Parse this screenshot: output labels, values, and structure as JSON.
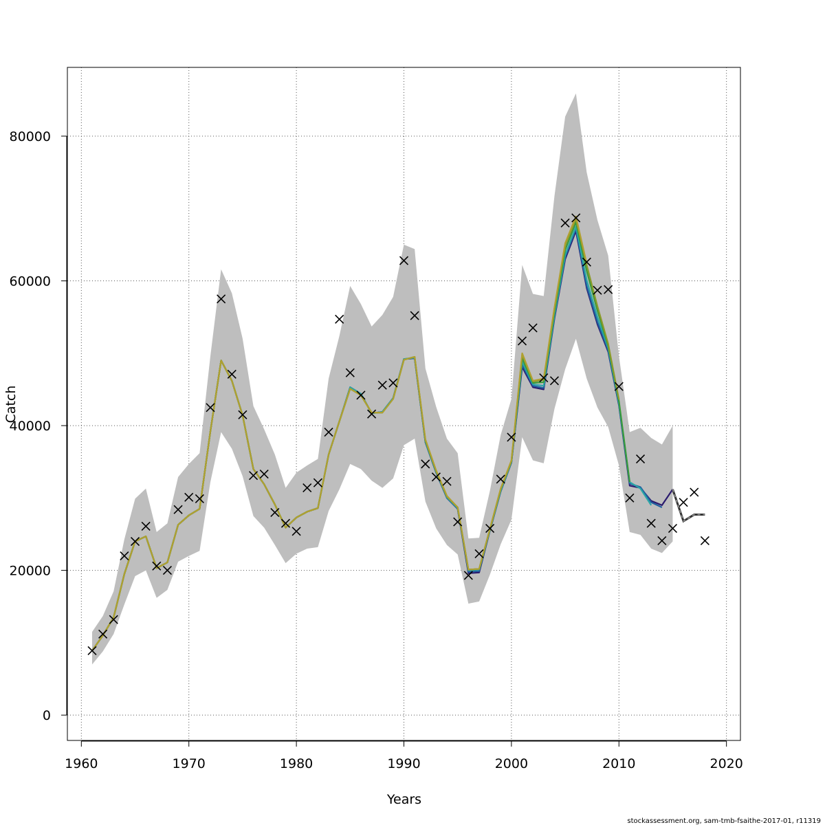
{
  "chart_data": {
    "type": "line",
    "xlabel": "Years",
    "ylabel": "Catch",
    "xlim": [
      1958.7,
      2021.3
    ],
    "ylim": [
      -3500,
      89500
    ],
    "x_ticks": [
      1960,
      1970,
      1980,
      1990,
      2000,
      2010,
      2020
    ],
    "y_ticks": [
      0,
      20000,
      40000,
      60000,
      80000
    ],
    "grid": true,
    "credit": "stockassessment.org, sam-tmb-fsaithe-2017-01, r11319",
    "colors": {
      "band": "#bebebe",
      "observed_marker": "#000000",
      "retro_lines": [
        "#2a1a6e",
        "#1f5fa0",
        "#2ba6a6",
        "#3a9a3a",
        "#8a9a2a",
        "#b0a030"
      ],
      "forecast": "#333333"
    },
    "years": [
      1961,
      1962,
      1963,
      1964,
      1965,
      1966,
      1967,
      1968,
      1969,
      1970,
      1971,
      1972,
      1973,
      1974,
      1975,
      1976,
      1977,
      1978,
      1979,
      1980,
      1981,
      1982,
      1983,
      1984,
      1985,
      1986,
      1987,
      1988,
      1989,
      1990,
      1991,
      1992,
      1993,
      1994,
      1995,
      1996,
      1997,
      1998,
      1999,
      2000,
      2001,
      2002,
      2003,
      2004,
      2005,
      2006,
      2007,
      2008,
      2009,
      2010,
      2011,
      2012,
      2013,
      2014,
      2015
    ],
    "ci_lower": [
      7000,
      8800,
      11200,
      15300,
      19200,
      20000,
      16200,
      17300,
      21200,
      22000,
      22700,
      32200,
      39100,
      36800,
      33000,
      27500,
      25900,
      23500,
      21000,
      22300,
      23000,
      23200,
      28200,
      31200,
      34700,
      34000,
      32400,
      31400,
      32700,
      37300,
      38200,
      29500,
      25800,
      23500,
      22200,
      15400,
      15700,
      19400,
      23600,
      27000,
      38400,
      35200,
      34800,
      42300,
      47800,
      52000,
      46500,
      42500,
      39800,
      34500,
      25300,
      24900,
      23000,
      22400,
      24000
    ],
    "ci_upper": [
      11500,
      13700,
      17100,
      24300,
      29900,
      31300,
      25300,
      26500,
      32900,
      34700,
      36200,
      49600,
      61600,
      58300,
      52000,
      42700,
      39500,
      36000,
      31400,
      33500,
      34500,
      35400,
      46500,
      52400,
      59300,
      56800,
      53700,
      55300,
      57800,
      65000,
      64400,
      47900,
      42600,
      38200,
      36200,
      24400,
      24500,
      31000,
      38700,
      43700,
      62200,
      58200,
      57900,
      71700,
      82700,
      85900,
      75000,
      68400,
      63500,
      49600,
      39100,
      39700,
      38300,
      37400,
      40000
    ],
    "series": [
      {
        "values": [
          8900,
          11000,
          13500,
          19500,
          24000,
          24700,
          20300,
          21100,
          26300,
          27600,
          28500,
          39200,
          49000,
          46200,
          41400,
          34000,
          31900,
          29100,
          25900,
          27300,
          28100,
          28600,
          36000,
          40600,
          45300,
          44400,
          41700,
          41900,
          43800,
          49200,
          49300,
          37700,
          33500,
          30000,
          28500,
          19600,
          19700,
          25500,
          30900,
          34900,
          48100,
          45300,
          45000,
          54800,
          63000,
          66900,
          59000,
          54000,
          50200,
          42800,
          31700,
          31400,
          29600,
          29000,
          31200
        ]
      },
      {
        "values": [
          8900,
          11000,
          13500,
          19500,
          24000,
          24700,
          20300,
          21100,
          26300,
          27600,
          28500,
          39200,
          49000,
          46200,
          41400,
          34000,
          31900,
          29100,
          25900,
          27300,
          28100,
          28600,
          36000,
          40600,
          45300,
          44400,
          41700,
          41900,
          43800,
          49200,
          49300,
          37700,
          33500,
          30000,
          28500,
          19800,
          19900,
          25500,
          30900,
          34900,
          48400,
          45500,
          45200,
          55000,
          63300,
          67200,
          59300,
          54300,
          50400,
          42900,
          32000,
          31500,
          29400,
          28700
        ]
      },
      {
        "values": [
          8900,
          11000,
          13500,
          19500,
          24000,
          24700,
          20300,
          21100,
          26300,
          27600,
          28500,
          39200,
          49000,
          46200,
          41400,
          34000,
          31900,
          29100,
          25900,
          27300,
          28100,
          28600,
          36000,
          40600,
          45300,
          44400,
          41700,
          41900,
          43800,
          49200,
          49400,
          37800,
          33600,
          30100,
          28600,
          20000,
          20100,
          25600,
          31000,
          35000,
          48800,
          45700,
          45500,
          55200,
          63600,
          67500,
          60100,
          55000,
          50700,
          43100,
          32200,
          31300,
          29000
        ]
      },
      {
        "values": [
          8900,
          11000,
          13500,
          19500,
          24000,
          24700,
          20300,
          21100,
          26300,
          27600,
          28500,
          39200,
          49000,
          46200,
          41400,
          34000,
          31900,
          29100,
          25900,
          27300,
          28100,
          28600,
          36000,
          40600,
          45100,
          44200,
          41800,
          41800,
          43700,
          49100,
          49500,
          37900,
          33700,
          30200,
          28700,
          20100,
          20200,
          25700,
          31200,
          35100,
          49300,
          45900,
          46000,
          55700,
          64300,
          68100,
          61400,
          55900,
          51000,
          43400,
          32200
        ]
      },
      {
        "values": [
          8900,
          11000,
          13500,
          19500,
          24000,
          24700,
          20300,
          21100,
          26300,
          27600,
          28500,
          39200,
          49000,
          46200,
          41400,
          34000,
          31900,
          29100,
          25900,
          27300,
          28100,
          28600,
          36000,
          40600,
          45100,
          44200,
          41800,
          41800,
          43700,
          49100,
          49500,
          38000,
          33700,
          30200,
          28700,
          20100,
          20200,
          25700,
          31200,
          35100,
          49800,
          46100,
          46300,
          56200,
          64900,
          68600,
          62200,
          56500,
          51300,
          43600
        ]
      },
      {
        "values": [
          8900,
          11000,
          13500,
          19500,
          24000,
          24700,
          20300,
          21100,
          26300,
          27600,
          28500,
          39200,
          49000,
          46200,
          41400,
          34000,
          31900,
          29100,
          25900,
          27300,
          28100,
          28600,
          36000,
          40600,
          45100,
          44200,
          41800,
          41800,
          43700,
          49100,
          49500,
          38100,
          33800,
          30300,
          28700,
          20100,
          20200,
          25700,
          31300,
          35200,
          50000,
          46200,
          46500,
          56300,
          65200,
          68900,
          62400
        ]
      }
    ],
    "forecast": {
      "years": [
        2015,
        2016,
        2017,
        2018
      ],
      "values": [
        31200,
        26800,
        27700,
        27700
      ]
    },
    "observed": {
      "years": [
        1961,
        1962,
        1963,
        1964,
        1965,
        1966,
        1967,
        1968,
        1969,
        1970,
        1971,
        1972,
        1973,
        1974,
        1975,
        1976,
        1977,
        1978,
        1979,
        1980,
        1981,
        1982,
        1983,
        1984,
        1985,
        1986,
        1987,
        1988,
        1989,
        1990,
        1991,
        1992,
        1993,
        1994,
        1995,
        1996,
        1997,
        1998,
        1999,
        2000,
        2001,
        2002,
        2003,
        2004,
        2005,
        2006,
        2007,
        2008,
        2009,
        2010,
        2011,
        2012,
        2013,
        2014,
        2015,
        2016,
        2017,
        2018
      ],
      "values": [
        8900,
        11200,
        13200,
        22000,
        24000,
        26100,
        20600,
        20000,
        28400,
        30100,
        29900,
        42500,
        57500,
        47100,
        41500,
        33100,
        33300,
        28000,
        26500,
        25400,
        31400,
        32100,
        39100,
        54700,
        47300,
        44200,
        41600,
        45600,
        45900,
        62800,
        55200,
        34700,
        32900,
        32300,
        26700,
        19300,
        22300,
        25800,
        32600,
        38400,
        51700,
        53500,
        46600,
        46200,
        68000,
        68700,
        62600,
        58700,
        58800,
        45400,
        30000,
        35400,
        26500,
        24100,
        25800,
        29400,
        30800,
        24100
      ]
    }
  }
}
